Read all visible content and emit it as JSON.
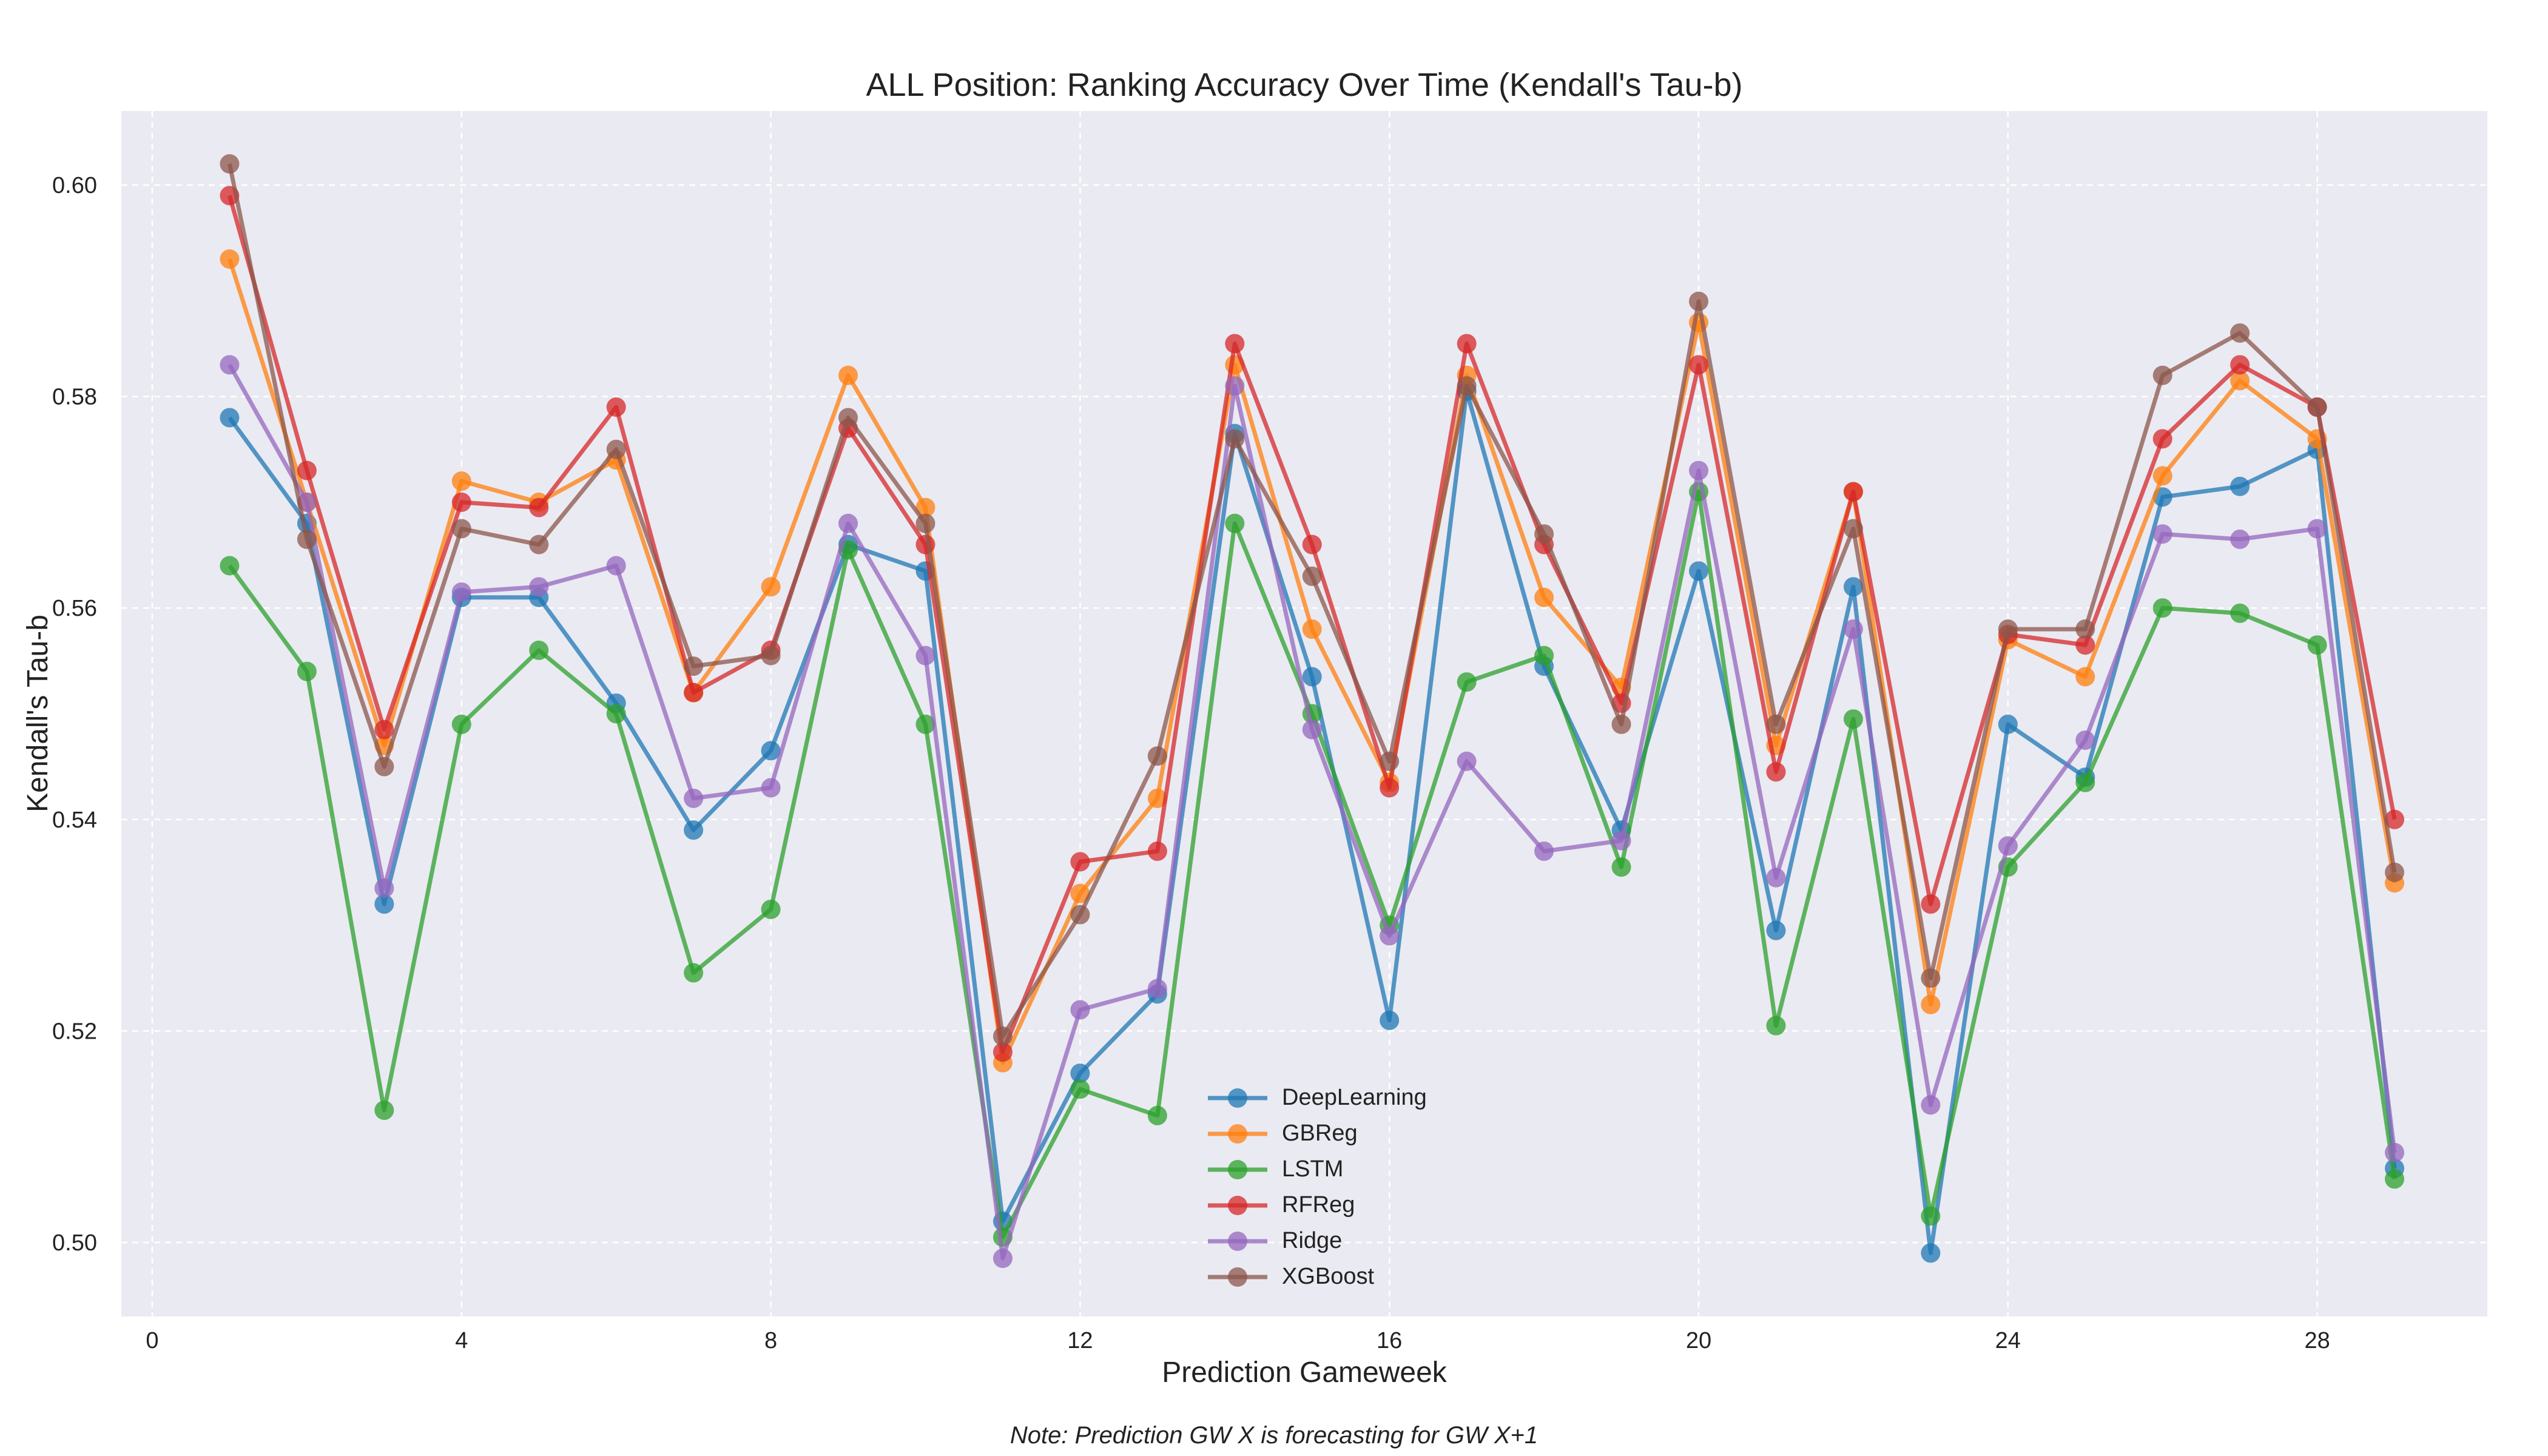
{
  "chart_data": {
    "type": "line",
    "title": "ALL Position: Ranking Accuracy Over Time (Kendall's Tau-b)",
    "xlabel": "Prediction Gameweek",
    "ylabel": "Kendall's Tau-b",
    "xlim": [
      -0.4,
      30.2
    ],
    "ylim": [
      0.493,
      0.607
    ],
    "xticks": [
      0,
      4,
      8,
      12,
      16,
      20,
      24,
      28
    ],
    "yticks": [
      0.5,
      0.52,
      0.54,
      0.56,
      0.58,
      0.6
    ],
    "ytick_labels": [
      "0.50",
      "0.52",
      "0.54",
      "0.56",
      "0.58",
      "0.60"
    ],
    "grid": true,
    "legend_position": "lower-center",
    "note": "Note: Prediction GW X is forecasting for GW X+1",
    "x": [
      1,
      2,
      3,
      4,
      5,
      6,
      7,
      8,
      9,
      10,
      11,
      12,
      13,
      14,
      15,
      16,
      17,
      18,
      19,
      20,
      21,
      22,
      23,
      24,
      25,
      26,
      27,
      28,
      29
    ],
    "series": [
      {
        "name": "DeepLearning",
        "color": "#1f77b4",
        "values": [
          0.578,
          0.568,
          0.532,
          0.561,
          0.561,
          0.551,
          0.539,
          0.5465,
          0.566,
          0.5635,
          0.502,
          0.516,
          0.5235,
          0.5765,
          0.5535,
          0.521,
          0.5805,
          0.5545,
          0.539,
          0.5635,
          0.5295,
          0.562,
          0.499,
          0.549,
          0.544,
          0.5705,
          0.5715,
          0.575,
          0.507
        ]
      },
      {
        "name": "GBReg",
        "color": "#ff7f0e",
        "values": [
          0.593,
          0.57,
          0.547,
          0.572,
          0.57,
          0.574,
          0.552,
          0.562,
          0.582,
          0.5695,
          0.517,
          0.533,
          0.542,
          0.583,
          0.558,
          0.5435,
          0.582,
          0.561,
          0.5525,
          0.587,
          0.547,
          0.571,
          0.5225,
          0.557,
          0.5535,
          0.5725,
          0.5815,
          0.576,
          0.534
        ]
      },
      {
        "name": "LSTM",
        "color": "#2ca02c",
        "values": [
          0.564,
          0.554,
          0.5125,
          0.549,
          0.556,
          0.55,
          0.5255,
          0.5315,
          0.5655,
          0.549,
          0.5005,
          0.5145,
          0.512,
          0.568,
          0.55,
          0.53,
          0.553,
          0.5555,
          0.5355,
          0.571,
          0.5205,
          0.5495,
          0.5025,
          0.5355,
          0.5435,
          0.56,
          0.5595,
          0.5565,
          0.506
        ]
      },
      {
        "name": "RFReg",
        "color": "#d62728",
        "values": [
          0.599,
          0.573,
          0.5485,
          0.57,
          0.5695,
          0.579,
          0.552,
          0.556,
          0.577,
          0.566,
          0.518,
          0.536,
          0.537,
          0.585,
          0.566,
          0.543,
          0.585,
          0.566,
          0.551,
          0.583,
          0.5445,
          0.571,
          0.532,
          0.5575,
          0.5565,
          0.576,
          0.583,
          0.579,
          0.54
        ]
      },
      {
        "name": "Ridge",
        "color": "#9467bd",
        "values": [
          0.583,
          0.57,
          0.5335,
          0.5615,
          0.562,
          0.564,
          0.542,
          0.543,
          0.568,
          0.5555,
          0.4985,
          0.522,
          0.524,
          0.581,
          0.5485,
          0.529,
          0.5455,
          0.537,
          0.538,
          0.573,
          0.5345,
          0.558,
          0.513,
          0.5375,
          0.5475,
          0.567,
          0.5665,
          0.5675,
          0.5085
        ]
      },
      {
        "name": "XGBoost",
        "color": "#8c564b",
        "values": [
          0.602,
          0.5665,
          0.545,
          0.5675,
          0.566,
          0.575,
          0.5545,
          0.5555,
          0.578,
          0.568,
          0.5195,
          0.531,
          0.546,
          0.576,
          0.563,
          0.5455,
          0.581,
          0.567,
          0.549,
          0.589,
          0.549,
          0.5675,
          0.525,
          0.558,
          0.558,
          0.582,
          0.586,
          0.579,
          0.535
        ]
      }
    ]
  }
}
